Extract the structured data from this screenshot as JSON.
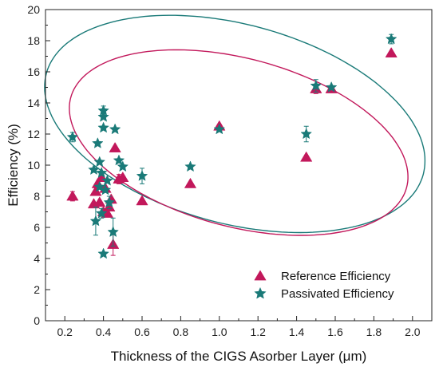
{
  "chart_data": {
    "type": "scatter",
    "title": "",
    "xlabel": "Thickness of the CIGS Asorber Layer (μm)",
    "ylabel": "Efficiency (%)",
    "xlim": [
      0.1,
      2.1
    ],
    "ylim": [
      0,
      20
    ],
    "xticks": [
      0.2,
      0.4,
      0.6,
      0.8,
      1.0,
      1.2,
      1.4,
      1.6,
      1.8,
      2.0
    ],
    "xtick_labels": [
      "0.2",
      "0.4",
      "0.6",
      "0.8",
      "1.0",
      "1.2",
      "1.4",
      "1.6",
      "1.8",
      "2.0"
    ],
    "yticks": [
      0,
      2,
      4,
      6,
      8,
      10,
      12,
      14,
      16,
      18,
      20
    ],
    "ytick_labels": [
      "0",
      "2",
      "4",
      "6",
      "8",
      "10",
      "12",
      "14",
      "16",
      "18",
      "20"
    ],
    "grid": false,
    "legend_position": "bottom-right",
    "series": [
      {
        "name": "Reference Efficiency",
        "marker": "triangle",
        "color": "#c2185b",
        "points": [
          [
            0.24,
            8.0
          ],
          [
            0.35,
            7.5
          ],
          [
            0.36,
            8.3
          ],
          [
            0.37,
            8.8
          ],
          [
            0.38,
            7.6
          ],
          [
            0.39,
            9.2
          ],
          [
            0.4,
            7.0
          ],
          [
            0.41,
            8.5
          ],
          [
            0.42,
            6.9
          ],
          [
            0.43,
            7.3
          ],
          [
            0.44,
            7.8
          ],
          [
            0.45,
            4.9
          ],
          [
            0.46,
            11.1
          ],
          [
            0.48,
            9.1
          ],
          [
            0.5,
            9.2
          ],
          [
            0.6,
            7.7
          ],
          [
            0.85,
            8.8
          ],
          [
            1.0,
            12.5
          ],
          [
            1.45,
            10.5
          ],
          [
            1.5,
            14.9
          ],
          [
            1.58,
            14.9
          ],
          [
            1.89,
            17.2
          ]
        ],
        "error_y": [
          0.3,
          0,
          0,
          0,
          0,
          0,
          0,
          0,
          0,
          0,
          0,
          0.7,
          0,
          0.3,
          0,
          0,
          0,
          0,
          0,
          0.3,
          0,
          0
        ]
      },
      {
        "name": "Passivated Efficiency",
        "marker": "star",
        "color": "#1a7a78",
        "points": [
          [
            0.24,
            11.8
          ],
          [
            0.35,
            9.7
          ],
          [
            0.36,
            6.4
          ],
          [
            0.37,
            11.4
          ],
          [
            0.38,
            10.2
          ],
          [
            0.38,
            8.6
          ],
          [
            0.39,
            9.5
          ],
          [
            0.39,
            6.9
          ],
          [
            0.4,
            13.5
          ],
          [
            0.4,
            13.1
          ],
          [
            0.4,
            12.4
          ],
          [
            0.4,
            4.3
          ],
          [
            0.41,
            8.4
          ],
          [
            0.42,
            9.0
          ],
          [
            0.43,
            7.6
          ],
          [
            0.45,
            5.7
          ],
          [
            0.46,
            12.3
          ],
          [
            0.48,
            10.3
          ],
          [
            0.5,
            9.9
          ],
          [
            0.6,
            9.3
          ],
          [
            0.85,
            9.9
          ],
          [
            1.0,
            12.3
          ],
          [
            1.45,
            12.0
          ],
          [
            1.5,
            15.1
          ],
          [
            1.58,
            15.0
          ],
          [
            1.89,
            18.1
          ]
        ],
        "error_y": [
          0.3,
          0,
          0.9,
          0,
          0,
          0,
          0,
          0.3,
          0.3,
          0,
          0,
          0,
          0,
          0,
          0.4,
          0.9,
          0,
          0,
          0,
          0.5,
          0,
          0,
          0.5,
          0.4,
          0,
          0.3
        ]
      }
    ],
    "ellipses": [
      {
        "series": "Passivated Efficiency",
        "color": "#1a7a78",
        "center": [
          1.08,
          12.65
        ],
        "semi_x": 1.01,
        "semi_y": 6.4,
        "rotation_deg": -15
      },
      {
        "series": "Reference Efficiency",
        "color": "#c2185b",
        "center": [
          1.1,
          11.45
        ],
        "semi_x": 0.9,
        "semi_y": 5.4,
        "rotation_deg": -15
      }
    ]
  }
}
